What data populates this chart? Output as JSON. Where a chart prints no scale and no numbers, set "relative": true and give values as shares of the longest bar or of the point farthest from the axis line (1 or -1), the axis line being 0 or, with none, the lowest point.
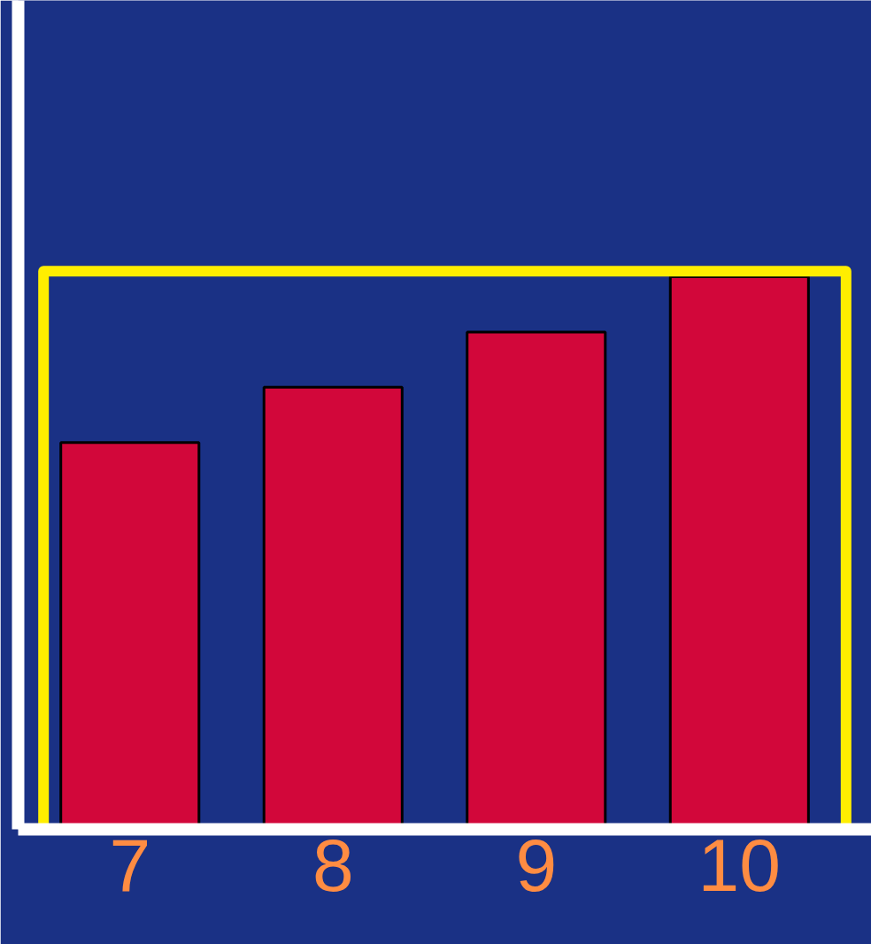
{
  "chart_data": {
    "type": "bar",
    "relative": true,
    "categories": [
      "7",
      "8",
      "9",
      "10"
    ],
    "values": [
      0.7,
      0.8,
      0.9,
      1.0
    ],
    "color": "#d2073a",
    "grid": false
  }
}
